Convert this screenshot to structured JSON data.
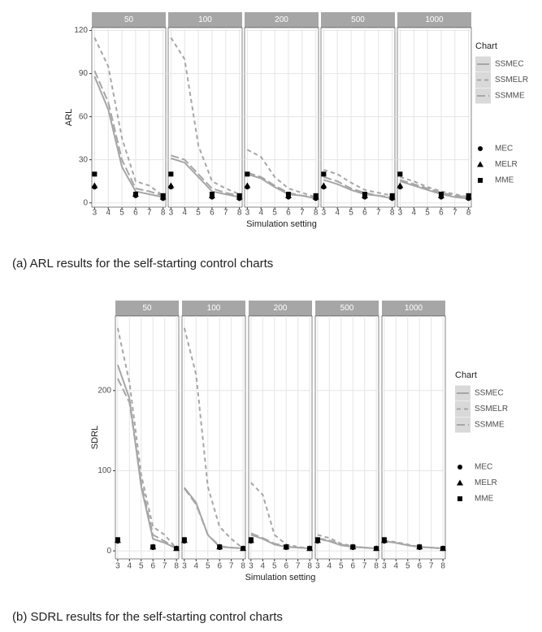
{
  "chart_data": [
    {
      "type": "line",
      "caption": "(a)  ARL results for the self-starting control charts",
      "y_label": "ARL",
      "x_label": "Simulation setting",
      "legend_title": "Chart",
      "xlim": [
        2.8,
        8.2
      ],
      "xticks": [
        3,
        4,
        5,
        6,
        7,
        8
      ],
      "ylim": [
        -3,
        122
      ],
      "yticks": [
        0,
        30,
        60,
        90,
        120
      ],
      "grid": true,
      "x": [
        3,
        4,
        5,
        6,
        7,
        8
      ],
      "point_x": [
        3,
        6,
        8
      ],
      "series": [
        {
          "name": "SSMEC",
          "color": "#a6a6a6",
          "style": "solid"
        },
        {
          "name": "SSMELR",
          "color": "#a6a6a6",
          "style": "dashed"
        },
        {
          "name": "SSMME",
          "color": "#a6a6a6",
          "style": "longdash"
        }
      ],
      "point_series": [
        {
          "name": "MEC",
          "shape": "circle"
        },
        {
          "name": "MELR",
          "shape": "triangle"
        },
        {
          "name": "MME",
          "shape": "square"
        }
      ],
      "panels": [
        {
          "title": "50",
          "lines": [
            [
              88,
              65,
              25,
              8,
              6,
              4
            ],
            [
              115,
              95,
              45,
              15,
              12,
              5
            ],
            [
              92,
              70,
              30,
              10,
              8,
              5
            ]
          ],
          "points": [
            [
              11,
              5,
              3
            ],
            [
              12,
              6,
              4
            ],
            [
              20,
              6,
              5
            ]
          ]
        },
        {
          "title": "100",
          "lines": [
            [
              31,
              28,
              18,
              8,
              6,
              4
            ],
            [
              115,
              100,
              40,
              15,
              10,
              6
            ],
            [
              33,
              30,
              20,
              10,
              7,
              5
            ]
          ],
          "points": [
            [
              11,
              4,
              3
            ],
            [
              12,
              5,
              4
            ],
            [
              20,
              6,
              5
            ]
          ]
        },
        {
          "title": "200",
          "lines": [
            [
              20,
              17,
              11,
              6,
              5,
              3
            ],
            [
              37,
              32,
              18,
              10,
              7,
              4
            ],
            [
              21,
              18,
              12,
              7,
              5,
              4
            ]
          ],
          "points": [
            [
              11,
              4,
              3
            ],
            [
              12,
              5,
              4
            ],
            [
              20,
              6,
              5
            ]
          ]
        },
        {
          "title": "500",
          "lines": [
            [
              16,
              13,
              9,
              6,
              5,
              3
            ],
            [
              23,
              20,
              14,
              9,
              7,
              5
            ],
            [
              18,
              15,
              10,
              7,
              5,
              4
            ]
          ],
          "points": [
            [
              11,
              4,
              3
            ],
            [
              12,
              5,
              4
            ],
            [
              20,
              6,
              5
            ]
          ]
        },
        {
          "title": "1000",
          "lines": [
            [
              15,
              12,
              9,
              6,
              4,
              3
            ],
            [
              18,
              15,
              11,
              8,
              6,
              4
            ],
            [
              16,
              13,
              10,
              7,
              5,
              4
            ]
          ],
          "points": [
            [
              11,
              4,
              3
            ],
            [
              12,
              5,
              4
            ],
            [
              20,
              6,
              5
            ]
          ]
        }
      ]
    },
    {
      "type": "line",
      "caption": "(b)  SDRL results for the self-starting control charts",
      "y_label": "SDRL",
      "x_label": "Simulation setting",
      "legend_title": "Chart",
      "xlim": [
        2.8,
        8.2
      ],
      "xticks": [
        3,
        4,
        5,
        6,
        7,
        8
      ],
      "ylim": [
        -10,
        293
      ],
      "yticks": [
        0,
        100,
        200
      ],
      "grid": true,
      "x": [
        3,
        4,
        5,
        6,
        7,
        8
      ],
      "point_x": [
        3,
        6,
        8
      ],
      "series": [
        {
          "name": "SSMEC",
          "color": "#a6a6a6",
          "style": "solid"
        },
        {
          "name": "SSMELR",
          "color": "#a6a6a6",
          "style": "dashed"
        },
        {
          "name": "SSMME",
          "color": "#a6a6a6",
          "style": "longdash"
        }
      ],
      "point_series": [
        {
          "name": "MEC",
          "shape": "circle"
        },
        {
          "name": "MELR",
          "shape": "triangle"
        },
        {
          "name": "MME",
          "shape": "square"
        }
      ],
      "panels": [
        {
          "title": "50",
          "lines": [
            [
              232,
              190,
              80,
              15,
              10,
              3
            ],
            [
              278,
              210,
              95,
              30,
              20,
              3
            ],
            [
              215,
              185,
              85,
              20,
              12,
              3
            ]
          ],
          "points": [
            [
              12,
              4,
              3
            ],
            [
              13,
              5,
              3
            ],
            [
              14,
              5,
              3
            ]
          ]
        },
        {
          "title": "100",
          "lines": [
            [
              79,
              60,
              20,
              5,
              4,
              3
            ],
            [
              278,
              220,
              80,
              30,
              15,
              3
            ],
            [
              78,
              58,
              20,
              6,
              4,
              3
            ]
          ],
          "points": [
            [
              12,
              4,
              3
            ],
            [
              13,
              5,
              3
            ],
            [
              14,
              5,
              3
            ]
          ]
        },
        {
          "title": "200",
          "lines": [
            [
              20,
              15,
              8,
              5,
              4,
              3
            ],
            [
              85,
              70,
              20,
              8,
              5,
              3
            ],
            [
              22,
              16,
              9,
              6,
              4,
              3
            ]
          ],
          "points": [
            [
              12,
              4,
              3
            ],
            [
              13,
              5,
              3
            ],
            [
              14,
              5,
              3
            ]
          ]
        },
        {
          "title": "500",
          "lines": [
            [
              15,
              12,
              7,
              5,
              4,
              3
            ],
            [
              20,
              16,
              9,
              6,
              4,
              3
            ],
            [
              16,
              13,
              8,
              5,
              4,
              3
            ]
          ],
          "points": [
            [
              12,
              4,
              3
            ],
            [
              13,
              5,
              3
            ],
            [
              14,
              5,
              3
            ]
          ]
        },
        {
          "title": "1000",
          "lines": [
            [
              12,
              10,
              7,
              5,
              4,
              3
            ],
            [
              13,
              11,
              8,
              5,
              4,
              3
            ],
            [
              12,
              10,
              7,
              5,
              4,
              3
            ]
          ],
          "points": [
            [
              12,
              4,
              3
            ],
            [
              13,
              5,
              3
            ],
            [
              14,
              5,
              3
            ]
          ]
        }
      ]
    }
  ]
}
